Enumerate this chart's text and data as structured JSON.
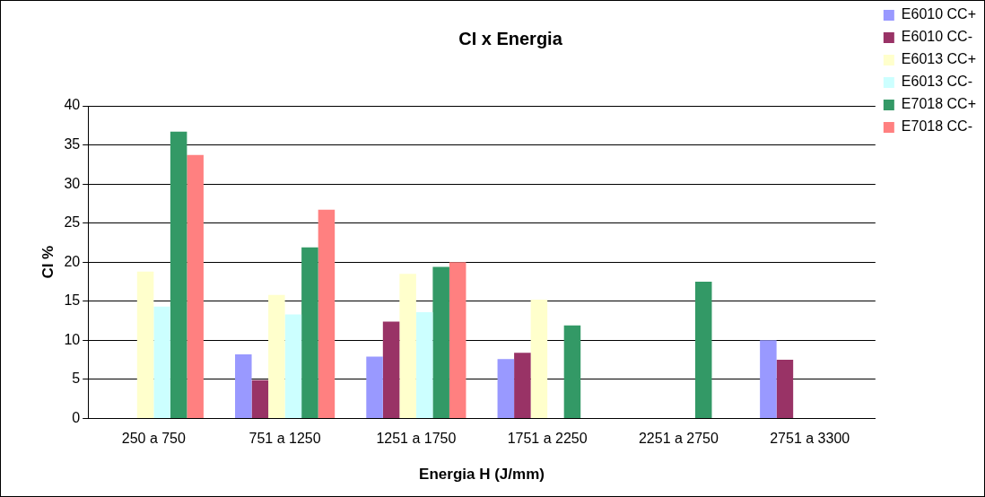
{
  "chart_data": {
    "type": "bar",
    "title": "CI x Energia",
    "xlabel": "Energia H (J/mm)",
    "ylabel": "CI %",
    "categories": [
      "250 a 750",
      "751 a 1250",
      "1251 a 1750",
      "1751 a 2250",
      "2251 a 2750",
      "2751 a 3300"
    ],
    "series": [
      {
        "name": "E6010 CC+",
        "color": "#9999ff",
        "values": [
          null,
          8.2,
          7.9,
          7.6,
          null,
          10.0
        ]
      },
      {
        "name": "E6010 CC-",
        "color": "#993366",
        "values": [
          null,
          4.9,
          12.4,
          8.4,
          null,
          7.5
        ]
      },
      {
        "name": "E6013 CC+",
        "color": "#ffffcc",
        "values": [
          18.8,
          15.8,
          18.5,
          15.2,
          null,
          null
        ]
      },
      {
        "name": "E6013 CC-",
        "color": "#ccffff",
        "values": [
          14.3,
          13.3,
          13.6,
          null,
          null,
          null
        ]
      },
      {
        "name": "E7018 CC+",
        "color": "#339966",
        "values": [
          36.7,
          21.9,
          19.4,
          11.9,
          17.5,
          null
        ]
      },
      {
        "name": "E7018 CC-",
        "color": "#ff8080",
        "values": [
          33.7,
          26.7,
          20.0,
          null,
          null,
          null
        ]
      }
    ],
    "ylim": [
      0,
      40
    ],
    "yticks": [
      0,
      5,
      10,
      15,
      20,
      25,
      30,
      35,
      40
    ],
    "grid": "y",
    "legend": "top right"
  }
}
